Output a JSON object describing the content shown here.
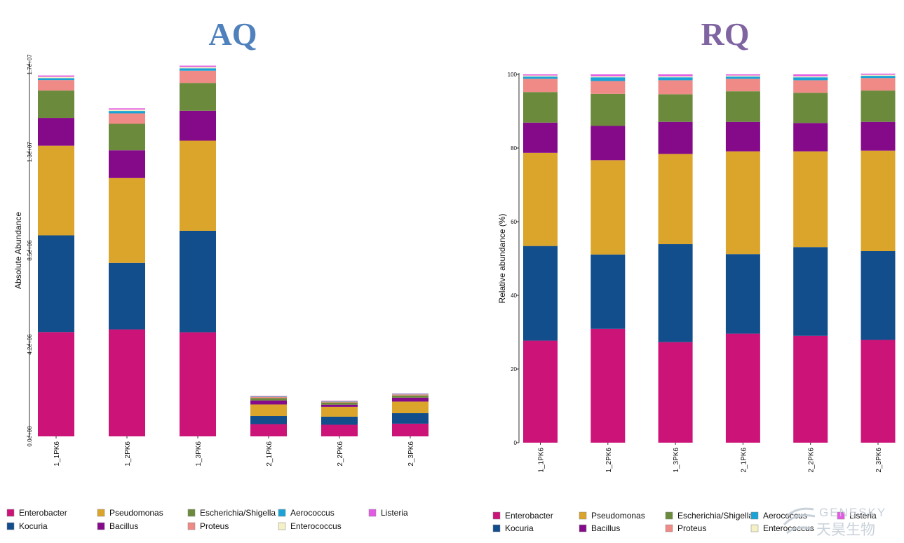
{
  "watermark": {
    "text_en": "GENESKY",
    "text_cn": "天昊生物"
  },
  "chart_data": [
    {
      "type": "bar",
      "stacked": true,
      "title": "AQ",
      "title_color": "#4f81bd",
      "ylabel": "Absolute Abundance",
      "ylim": [
        0,
        17000000
      ],
      "yticks": [
        0,
        4200000,
        8500000,
        13000000,
        17000000
      ],
      "ytick_labels": [
        "0.0e+00",
        "4.2e+06",
        "8.5e+06",
        "1.3e+07",
        "1.7e+07"
      ],
      "categories": [
        "1_1PK6",
        "1_2PK6",
        "1_3PK6",
        "2_1PK6",
        "2_2PK6",
        "2_3PK6"
      ],
      "series": [
        {
          "name": "Enterobacter",
          "color": "#cc1478",
          "values": [
            4770000,
            4890000,
            4760000,
            560000,
            530000,
            580000
          ]
        },
        {
          "name": "Kocuria",
          "color": "#124e8c",
          "values": [
            4420000,
            3040000,
            4640000,
            370000,
            370000,
            480000
          ]
        },
        {
          "name": "Pseudomonas",
          "color": "#daa52a",
          "values": [
            4100000,
            3880000,
            4120000,
            530000,
            450000,
            530000
          ]
        },
        {
          "name": "Bacillus",
          "color": "#850a8a",
          "values": [
            1270000,
            1270000,
            1370000,
            180000,
            100000,
            180000
          ]
        },
        {
          "name": "Escherichia/Shigella",
          "color": "#6b8a3c",
          "values": [
            1250000,
            1210000,
            1270000,
            110000,
            100000,
            100000
          ]
        },
        {
          "name": "Proteus",
          "color": "#ef8a86",
          "values": [
            480000,
            480000,
            560000,
            60000,
            40000,
            50000
          ]
        },
        {
          "name": "Aerococcus",
          "color": "#1aa3d6",
          "values": [
            90000,
            110000,
            110000,
            20000,
            20000,
            20000
          ]
        },
        {
          "name": "Enterococcus",
          "color": "#f4f1c6",
          "values": [
            60000,
            60000,
            60000,
            15000,
            15000,
            15000
          ]
        },
        {
          "name": "Listeria",
          "color": "#e45ae4",
          "values": [
            60000,
            60000,
            60000,
            15000,
            15000,
            15000
          ]
        }
      ]
    },
    {
      "type": "bar",
      "stacked": true,
      "title": "RQ",
      "title_color": "#8064a2",
      "ylabel": "Relative abundance (%)",
      "ylim": [
        0,
        100
      ],
      "yticks": [
        0,
        20,
        40,
        60,
        80,
        100
      ],
      "ytick_labels": [
        "0",
        "20",
        "40",
        "60",
        "80",
        "100"
      ],
      "categories": [
        "1_1PK6",
        "1_2PK6",
        "1_3PK6",
        "2_1PK6",
        "2_2PK6",
        "2_3PK6"
      ],
      "series": [
        {
          "name": "Enterobacter",
          "color": "#cc1478",
          "values": [
            27.7,
            30.9,
            27.3,
            29.6,
            29.0,
            27.9
          ]
        },
        {
          "name": "Kocuria",
          "color": "#124e8c",
          "values": [
            25.7,
            20.2,
            26.6,
            21.6,
            24.1,
            24.1
          ]
        },
        {
          "name": "Pseudomonas",
          "color": "#daa52a",
          "values": [
            25.3,
            25.6,
            24.5,
            27.9,
            26.0,
            27.3
          ]
        },
        {
          "name": "Bacillus",
          "color": "#850a8a",
          "values": [
            8.2,
            9.3,
            8.7,
            8.0,
            7.7,
            7.8
          ]
        },
        {
          "name": "Escherichia/Shigella",
          "color": "#6b8a3c",
          "values": [
            8.3,
            8.7,
            7.5,
            8.3,
            8.2,
            8.5
          ]
        },
        {
          "name": "Proteus",
          "color": "#ef8a86",
          "values": [
            3.6,
            3.5,
            3.8,
            3.4,
            3.4,
            3.4
          ]
        },
        {
          "name": "Aerococcus",
          "color": "#1aa3d6",
          "values": [
            0.6,
            1.0,
            0.8,
            0.6,
            0.8,
            0.6
          ]
        },
        {
          "name": "Enterococcus",
          "color": "#f4f1c6",
          "values": [
            0.3,
            0.3,
            0.3,
            0.3,
            0.3,
            0.3
          ]
        },
        {
          "name": "Listeria",
          "color": "#e45ae4",
          "values": [
            0.3,
            0.5,
            0.5,
            0.3,
            0.5,
            0.3
          ]
        }
      ]
    }
  ],
  "legends": [
    {
      "rows": [
        [
          "Enterobacter",
          "Pseudomonas",
          "Escherichia/Shigella",
          "Aerococcus",
          "Listeria"
        ],
        [
          "Kocuria",
          "Bacillus",
          "Proteus",
          "Enterococcus"
        ]
      ]
    },
    {
      "rows": [
        [
          "Enterobacter",
          "Pseudomonas",
          "Escherichia/Shigella",
          "Aerococcus",
          "Listeria"
        ],
        [
          "Kocuria",
          "Bacillus",
          "Proteus",
          "Enterococcus"
        ]
      ]
    }
  ]
}
